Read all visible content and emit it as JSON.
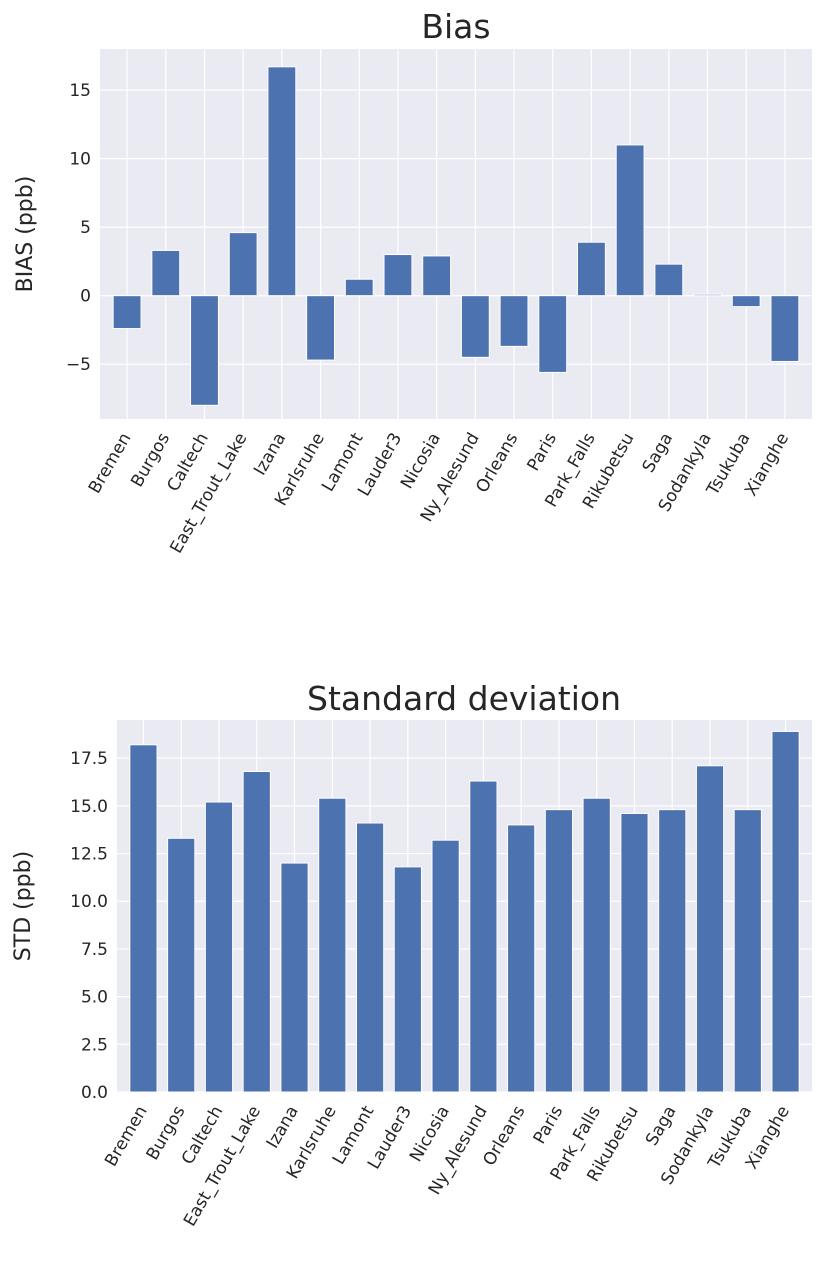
{
  "chart_data": [
    {
      "type": "bar",
      "title": "Bias",
      "xlabel": "",
      "ylabel": "BIAS (ppb)",
      "ylim": [
        -9,
        18
      ],
      "yticks": [
        -5,
        0,
        5,
        10,
        15
      ],
      "ytick_labels": [
        "−5",
        "0",
        "5",
        "10",
        "15"
      ],
      "grid": true,
      "categories": [
        "Bremen",
        "Burgos",
        "Caltech",
        "East_Trout_Lake",
        "Izana",
        "Karlsruhe",
        "Lamont",
        "Lauder3",
        "Nicosia",
        "Ny_Alesund",
        "Orleans",
        "Paris",
        "Park_Falls",
        "Rikubetsu",
        "Saga",
        "Sodankyla",
        "Tsukuba",
        "Xianghe"
      ],
      "values": [
        -2.4,
        3.3,
        -8.0,
        4.6,
        16.7,
        -4.7,
        1.2,
        3.0,
        2.9,
        -4.5,
        -3.7,
        -5.6,
        3.9,
        11.0,
        2.3,
        0.1,
        -0.8,
        -4.8
      ]
    },
    {
      "type": "bar",
      "title": "Standard deviation",
      "xlabel": "",
      "ylabel": "STD (ppb)",
      "ylim": [
        0,
        19.5
      ],
      "yticks": [
        0,
        2.5,
        5,
        7.5,
        10,
        12.5,
        15,
        17.5
      ],
      "ytick_labels": [
        "0.0",
        "2.5",
        "5.0",
        "7.5",
        "10.0",
        "12.5",
        "15.0",
        "17.5"
      ],
      "grid": true,
      "categories": [
        "Bremen",
        "Burgos",
        "Caltech",
        "East_Trout_Lake",
        "Izana",
        "Karlsruhe",
        "Lamont",
        "Lauder3",
        "Nicosia",
        "Ny_Alesund",
        "Orleans",
        "Paris",
        "Park_Falls",
        "Rikubetsu",
        "Saga",
        "Sodankyla",
        "Tsukuba",
        "Xianghe"
      ],
      "values": [
        18.2,
        13.3,
        15.2,
        16.8,
        12.0,
        15.4,
        14.1,
        11.8,
        13.2,
        16.3,
        14.0,
        14.8,
        15.4,
        14.6,
        14.8,
        17.1,
        14.8,
        18.9
      ]
    }
  ]
}
